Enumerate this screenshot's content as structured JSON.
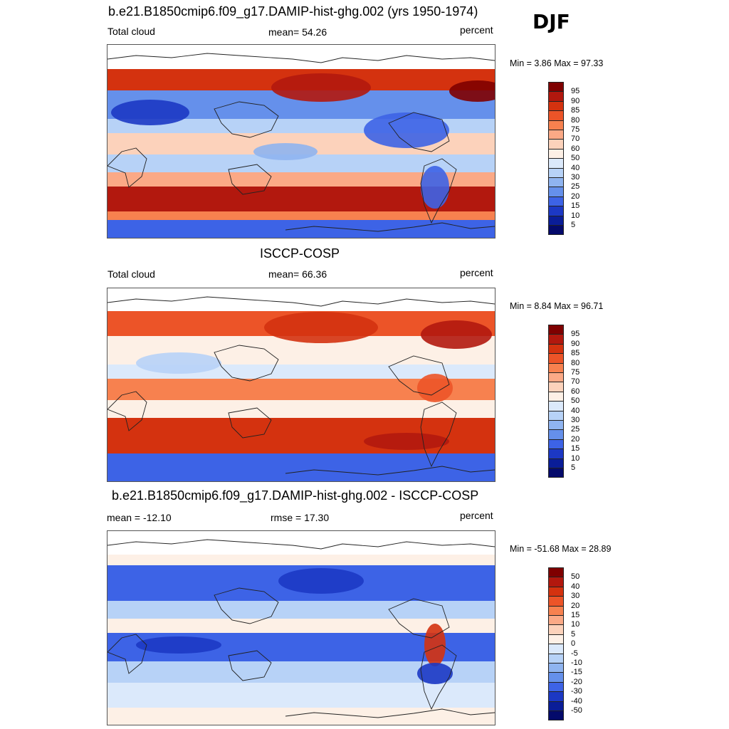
{
  "season": "DJF",
  "panels": [
    {
      "title": "b.e21.B1850cmip6.f09_g17.DAMIP-hist-ghg.002 (yrs 1950-1974)",
      "left_label": "Total cloud",
      "center_label": "mean=  54.26",
      "right_label": "percent",
      "minmax": "Min =   3.86 Max =  97.33",
      "colorbar_ticks": [
        "95",
        "90",
        "85",
        "80",
        "75",
        "70",
        "60",
        "50",
        "40",
        "30",
        "25",
        "20",
        "15",
        "10",
        "5"
      ]
    },
    {
      "title": "ISCCP-COSP",
      "left_label": "Total cloud",
      "center_label": "mean=  66.36",
      "right_label": "percent",
      "minmax": "Min =   8.84 Max =  96.71",
      "colorbar_ticks": [
        "95",
        "90",
        "85",
        "80",
        "75",
        "70",
        "60",
        "50",
        "40",
        "30",
        "25",
        "20",
        "15",
        "10",
        "5"
      ]
    },
    {
      "title": "b.e21.B1850cmip6.f09_g17.DAMIP-hist-ghg.002 - ISCCP-COSP",
      "left_label": "mean = -12.10",
      "center_label": "rmse =  17.30",
      "right_label": "percent",
      "minmax": "Min = -51.68 Max =  28.89",
      "colorbar_ticks": [
        "50",
        "40",
        "30",
        "20",
        "15",
        "10",
        "5",
        "0",
        "-5",
        "-10",
        "-15",
        "-20",
        "-30",
        "-40",
        "-50"
      ]
    }
  ],
  "colors": {
    "palette": [
      "#7f0000",
      "#b2180e",
      "#d4320f",
      "#ec5428",
      "#f7814f",
      "#fba986",
      "#fcd2bb",
      "#fdf0e6",
      "#dbe9fb",
      "#b7d2f7",
      "#8fb4f0",
      "#6590eb",
      "#3d63e6",
      "#1c38c4",
      "#0a1d98",
      "#040a6b"
    ],
    "map_border": "#555555",
    "coastline": "#222222"
  }
}
